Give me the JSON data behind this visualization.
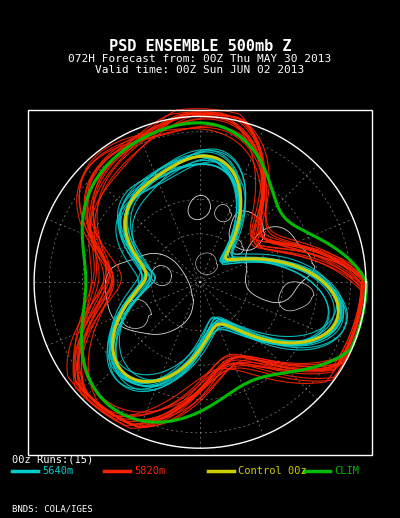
{
  "title_line1": "PSD ENSEMBLE 500mb Z",
  "title_line2": "072H Forecast from: 00Z Thu MAY 30 2013",
  "title_line3": "Valid time: 00Z Sun JUN 02 2013",
  "runs_label": "00z Runs:(15)",
  "legend_items": [
    {
      "label": "5640m",
      "color": "#00CCCC"
    },
    {
      "label": "5820m",
      "color": "#FF2200"
    },
    {
      "label": "Control 00z",
      "color": "#CCCC00"
    },
    {
      "label": "CLIM",
      "color": "#00BB00"
    }
  ],
  "credit": "BNDS: COLA/IGES",
  "bg_color": "#000000",
  "map_border_color": "#FFFFFF",
  "grid_color": "#FFFFFF",
  "title_color": "#FFFFFF",
  "fig_width": 4.0,
  "fig_height": 5.18,
  "cyan_color": "#00CCCC",
  "red_color": "#FF2200",
  "yellow_color": "#CCCC00",
  "green_color": "#00BB00"
}
